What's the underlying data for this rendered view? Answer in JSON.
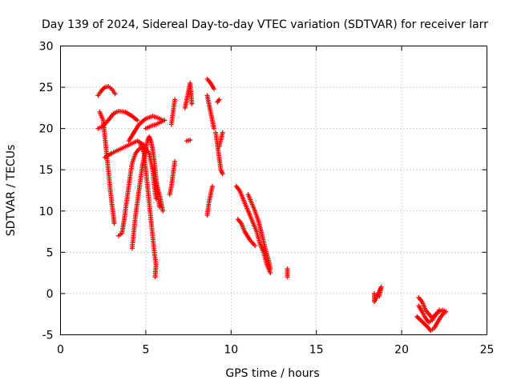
{
  "chart_data": {
    "type": "scatter",
    "title": "Day 139 of 2024, Sidereal Day-to-day VTEC variation (SDTVAR) for receiver larr",
    "xlabel": "GPS time / hours",
    "ylabel": "SDTVAR / TECUs",
    "xlim": [
      0,
      25
    ],
    "ylim": [
      -5,
      30
    ],
    "x_ticks": [
      0,
      5,
      10,
      15,
      20,
      25
    ],
    "y_ticks": [
      -5,
      0,
      5,
      10,
      15,
      20,
      25,
      30
    ],
    "x_tick_labels": [
      "0",
      "5",
      "10",
      "15",
      "20",
      "25"
    ],
    "y_tick_labels": [
      "-5",
      "0",
      "5",
      "10",
      "15",
      "20",
      "25",
      "30"
    ],
    "grid": true,
    "marker": "plus",
    "marker_color": "#ff0000",
    "series": [
      {
        "segments": [
          [
            [
              2.2,
              24.0
            ],
            [
              2.4,
              24.6
            ],
            [
              2.6,
              25.0
            ],
            [
              2.8,
              25.1
            ],
            [
              3.0,
              24.8
            ],
            [
              3.2,
              24.2
            ]
          ],
          [
            [
              2.2,
              20.0
            ],
            [
              2.5,
              20.3
            ],
            [
              2.8,
              21.0
            ],
            [
              3.1,
              21.8
            ],
            [
              3.4,
              22.1
            ],
            [
              3.8,
              22.0
            ],
            [
              4.2,
              21.5
            ],
            [
              4.5,
              21.0
            ]
          ],
          [
            [
              2.3,
              22.0
            ],
            [
              2.5,
              21.0
            ],
            [
              2.6,
              19.0
            ],
            [
              2.7,
              17.0
            ],
            [
              2.8,
              15.0
            ],
            [
              2.9,
              13.0
            ],
            [
              3.0,
              11.0
            ],
            [
              3.1,
              9.5
            ],
            [
              3.15,
              8.5
            ]
          ],
          [
            [
              2.6,
              16.5
            ],
            [
              3.0,
              17.0
            ],
            [
              3.5,
              17.5
            ],
            [
              4.0,
              18.0
            ],
            [
              4.5,
              18.5
            ],
            [
              4.9,
              18.0
            ]
          ],
          [
            [
              3.4,
              7.0
            ],
            [
              3.6,
              7.3
            ],
            [
              3.7,
              8.5
            ],
            [
              3.8,
              10.0
            ],
            [
              3.9,
              11.5
            ],
            [
              4.0,
              13.0
            ],
            [
              4.1,
              14.5
            ],
            [
              4.2,
              15.8
            ],
            [
              4.4,
              17.0
            ],
            [
              4.6,
              17.5
            ],
            [
              4.8,
              17.8
            ],
            [
              5.0,
              17.6
            ],
            [
              5.2,
              17.0
            ],
            [
              5.4,
              15.0
            ],
            [
              5.5,
              13.0
            ],
            [
              5.6,
              11.5
            ]
          ],
          [
            [
              4.2,
              5.5
            ],
            [
              4.3,
              7.5
            ],
            [
              4.4,
              9.5
            ],
            [
              4.5,
              11.0
            ],
            [
              4.6,
              12.5
            ],
            [
              4.7,
              14.0
            ],
            [
              4.8,
              15.5
            ],
            [
              4.9,
              16.5
            ],
            [
              5.0,
              17.5
            ],
            [
              5.1,
              18.5
            ],
            [
              5.2,
              19.0
            ],
            [
              5.3,
              18.5
            ],
            [
              5.4,
              17.5
            ],
            [
              5.5,
              16.0
            ],
            [
              5.6,
              14.0
            ],
            [
              5.7,
              12.0
            ],
            [
              5.8,
              10.5
            ]
          ],
          [
            [
              4.0,
              18.5
            ],
            [
              4.3,
              19.5
            ],
            [
              4.6,
              20.5
            ],
            [
              5.0,
              21.2
            ],
            [
              5.4,
              21.5
            ],
            [
              5.7,
              21.3
            ],
            [
              6.0,
              21.0
            ]
          ],
          [
            [
              4.7,
              18.0
            ],
            [
              4.9,
              17.0
            ],
            [
              5.0,
              15.0
            ],
            [
              5.1,
              13.0
            ],
            [
              5.2,
              11.0
            ],
            [
              5.3,
              9.0
            ],
            [
              5.4,
              7.0
            ],
            [
              5.5,
              5.0
            ],
            [
              5.6,
              3.5
            ],
            [
              5.55,
              2.0
            ]
          ],
          [
            [
              5.0,
              20.0
            ],
            [
              5.3,
              20.3
            ],
            [
              5.6,
              20.5
            ],
            [
              5.9,
              20.8
            ],
            [
              6.1,
              21.0
            ]
          ],
          [
            [
              5.6,
              13.5
            ],
            [
              5.8,
              12.0
            ],
            [
              5.9,
              11.0
            ],
            [
              6.0,
              10.0
            ]
          ],
          [
            [
              6.4,
              12.0
            ],
            [
              6.5,
              13.0
            ],
            [
              6.6,
              14.5
            ],
            [
              6.7,
              16.0
            ]
          ],
          [
            [
              6.5,
              20.5
            ],
            [
              6.6,
              22.0
            ],
            [
              6.7,
              23.5
            ]
          ],
          [
            [
              7.4,
              18.5
            ],
            [
              7.6,
              18.6
            ]
          ],
          [
            [
              7.3,
              22.5
            ],
            [
              7.4,
              23.5
            ],
            [
              7.5,
              24.5
            ],
            [
              7.6,
              25.5
            ],
            [
              7.7,
              23.0
            ]
          ],
          [
            [
              8.6,
              26.0
            ],
            [
              8.8,
              25.5
            ],
            [
              9.0,
              24.8
            ]
          ],
          [
            [
              8.6,
              24.0
            ],
            [
              8.7,
              23.0
            ],
            [
              8.8,
              22.0
            ],
            [
              8.9,
              21.0
            ],
            [
              9.0,
              20.0
            ]
          ],
          [
            [
              8.6,
              9.5
            ],
            [
              8.7,
              11.0
            ],
            [
              8.8,
              12.0
            ],
            [
              8.9,
              13.0
            ]
          ],
          [
            [
              9.2,
              23.2
            ],
            [
              9.3,
              23.5
            ]
          ],
          [
            [
              9.1,
              19.5
            ],
            [
              9.2,
              18.0
            ],
            [
              9.3,
              16.5
            ],
            [
              9.4,
              15.0
            ],
            [
              9.5,
              14.5
            ]
          ],
          [
            [
              9.3,
              17.8
            ],
            [
              9.5,
              19.5
            ]
          ],
          [
            [
              10.3,
              13.0
            ],
            [
              10.5,
              12.5
            ],
            [
              10.7,
              11.5
            ],
            [
              10.9,
              10.5
            ],
            [
              11.1,
              9.5
            ],
            [
              11.3,
              8.5
            ],
            [
              11.5,
              7.5
            ],
            [
              11.7,
              6.0
            ],
            [
              11.9,
              5.0
            ],
            [
              12.1,
              3.5
            ],
            [
              12.3,
              2.5
            ]
          ],
          [
            [
              10.4,
              9.0
            ],
            [
              10.6,
              8.5
            ],
            [
              10.8,
              7.5
            ],
            [
              11.1,
              6.5
            ],
            [
              11.4,
              5.8
            ]
          ],
          [
            [
              11.0,
              12.0
            ],
            [
              11.2,
              11.0
            ],
            [
              11.4,
              10.0
            ],
            [
              11.6,
              8.8
            ],
            [
              11.8,
              7.2
            ],
            [
              12.0,
              5.5
            ],
            [
              12.2,
              4.0
            ],
            [
              12.3,
              3.0
            ]
          ],
          [
            [
              13.3,
              3.0
            ],
            [
              13.3,
              2.0
            ]
          ],
          [
            [
              18.4,
              0.0
            ],
            [
              18.4,
              -1.0
            ],
            [
              18.7,
              0.3
            ],
            [
              18.8,
              0.8
            ],
            [
              18.7,
              -0.3
            ]
          ],
          [
            [
              21.0,
              -0.5
            ],
            [
              21.2,
              -1.0
            ],
            [
              21.4,
              -2.0
            ],
            [
              21.6,
              -2.5
            ],
            [
              21.8,
              -3.0
            ],
            [
              22.0,
              -2.5
            ],
            [
              22.2,
              -2.2
            ],
            [
              22.4,
              -2.0
            ],
            [
              22.6,
              -2.2
            ]
          ],
          [
            [
              20.9,
              -2.8
            ],
            [
              21.1,
              -3.2
            ],
            [
              21.3,
              -3.6
            ],
            [
              21.5,
              -4.0
            ],
            [
              21.7,
              -4.5
            ],
            [
              21.9,
              -4.2
            ],
            [
              22.1,
              -3.5
            ],
            [
              22.3,
              -2.8
            ],
            [
              22.5,
              -2.3
            ]
          ],
          [
            [
              21.0,
              -1.5
            ],
            [
              21.2,
              -2.2
            ],
            [
              21.4,
              -3.0
            ],
            [
              21.6,
              -3.5
            ],
            [
              21.8,
              -3.2
            ],
            [
              22.0,
              -2.6
            ],
            [
              22.2,
              -2.0
            ]
          ]
        ]
      }
    ]
  }
}
